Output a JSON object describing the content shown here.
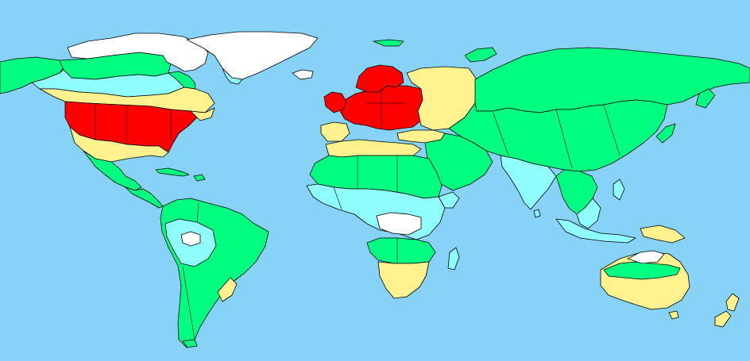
{
  "map": {
    "ocean_color": "#87d3f8",
    "border_color": "#000000",
    "palette": {
      "red": "#ff0000",
      "yellow": "#fff28f",
      "green": "#00ff80",
      "light_blue": "#90fdfd",
      "white": "#ffffff"
    }
  }
}
